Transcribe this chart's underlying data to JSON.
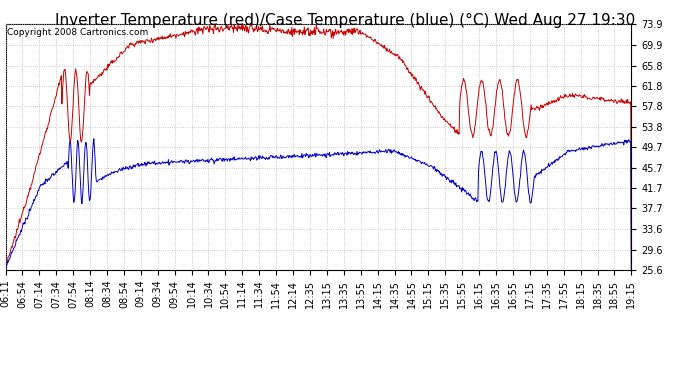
{
  "title": "Inverter Temperature (red)/Case Temperature (blue) (°C) Wed Aug 27 19:30",
  "copyright": "Copyright 2008 Cartronics.com",
  "ymin": 25.6,
  "ymax": 73.9,
  "yticks": [
    73.9,
    69.9,
    65.8,
    61.8,
    57.8,
    53.8,
    49.7,
    45.7,
    41.7,
    37.7,
    33.6,
    29.6,
    25.6
  ],
  "xtick_labels": [
    "06:11",
    "06:54",
    "07:14",
    "07:34",
    "07:54",
    "08:14",
    "08:34",
    "08:54",
    "09:14",
    "09:34",
    "09:54",
    "10:14",
    "10:34",
    "10:54",
    "11:14",
    "11:34",
    "11:54",
    "12:14",
    "12:35",
    "13:15",
    "13:35",
    "13:55",
    "14:15",
    "14:35",
    "14:55",
    "15:15",
    "15:35",
    "15:55",
    "16:15",
    "16:35",
    "16:55",
    "17:15",
    "17:35",
    "17:55",
    "18:15",
    "18:35",
    "18:55",
    "19:15"
  ],
  "background_color": "#ffffff",
  "plot_bg_color": "#ffffff",
  "grid_color": "#bbbbbb",
  "line_red_color": "#cc0000",
  "line_blue_color": "#0000cc",
  "title_fontsize": 11,
  "tick_fontsize": 7,
  "copyright_fontsize": 6.5
}
